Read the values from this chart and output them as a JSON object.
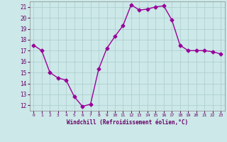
{
  "x": [
    0,
    1,
    2,
    3,
    4,
    5,
    6,
    7,
    8,
    9,
    10,
    11,
    12,
    13,
    14,
    15,
    16,
    17,
    18,
    19,
    20,
    21,
    22,
    23
  ],
  "y": [
    17.5,
    17.0,
    15.0,
    14.5,
    14.3,
    12.8,
    11.9,
    12.1,
    15.3,
    17.2,
    18.3,
    19.3,
    21.2,
    20.7,
    20.8,
    21.0,
    21.1,
    19.8,
    17.5,
    17.0,
    17.0,
    17.0,
    16.9,
    16.7
  ],
  "line_color": "#990099",
  "marker": "D",
  "markersize": 2.5,
  "bg_color": "#cce8e8",
  "grid_color": "#aacccc",
  "xlabel": "Windchill (Refroidissement éolien,°C)",
  "xlabel_color": "#660066",
  "tick_color": "#660066",
  "ylim": [
    11.5,
    21.5
  ],
  "xlim": [
    -0.5,
    23.5
  ],
  "yticks": [
    12,
    13,
    14,
    15,
    16,
    17,
    18,
    19,
    20,
    21
  ],
  "xticks": [
    0,
    1,
    2,
    3,
    4,
    5,
    6,
    7,
    8,
    9,
    10,
    11,
    12,
    13,
    14,
    15,
    16,
    17,
    18,
    19,
    20,
    21,
    22,
    23
  ]
}
